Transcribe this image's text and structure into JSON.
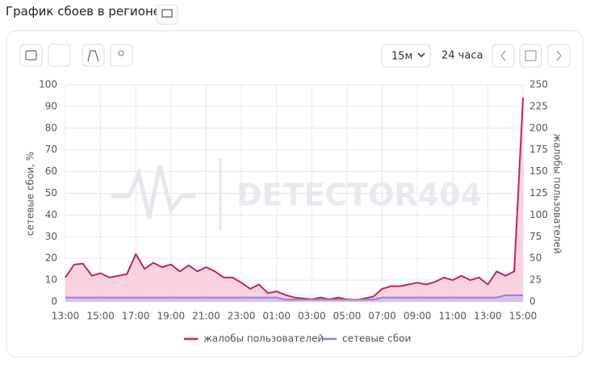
{
  "header": {
    "title": "График сбоев в регионе"
  },
  "toolbar": {
    "interval": "15м",
    "range": "24 часа"
  },
  "watermark": "DETECTOR404",
  "chart_data": {
    "type": "line",
    "y_label": "сетевые сбои, %",
    "y2_label": "жалобы пользователей",
    "categories": [
      "13:00",
      null,
      null,
      null,
      "15:00",
      null,
      null,
      null,
      "17:00",
      null,
      null,
      null,
      "19:00",
      null,
      null,
      null,
      "21:00",
      null,
      null,
      null,
      "23:00",
      null,
      null,
      null,
      "01:00",
      null,
      null,
      null,
      "03:00",
      null,
      null,
      null,
      "05:00",
      null,
      null,
      null,
      "07:00",
      null,
      null,
      null,
      "09:00",
      null,
      null,
      null,
      "11:00",
      null,
      null,
      null,
      "13:00",
      null,
      null,
      null,
      "15:00"
    ],
    "series": [
      {
        "name": "жалобы пользователей",
        "color": "#c8215d",
        "fill": "#f6c6d9",
        "axis": "y2",
        "values": [
          28,
          43,
          44,
          30,
          33,
          28,
          30,
          32,
          55,
          38,
          45,
          40,
          43,
          35,
          42,
          35,
          40,
          35,
          28,
          28,
          22,
          15,
          20,
          10,
          12,
          8,
          5,
          4,
          3,
          5,
          3,
          5,
          3,
          2,
          4,
          6,
          15,
          18,
          18,
          20,
          22,
          20,
          23,
          28,
          25,
          30,
          25,
          28,
          20,
          35,
          30,
          35,
          235
        ]
      },
      {
        "name": "сетевые сбои",
        "color": "#9b7be0",
        "fill": "#c9b8ef",
        "axis": "y",
        "values": [
          2,
          2,
          2,
          2,
          2,
          2,
          2,
          2,
          2,
          2,
          2,
          2,
          2,
          2,
          2,
          2,
          2,
          2,
          2,
          2,
          2,
          2,
          2,
          2,
          2,
          1,
          1,
          1,
          1,
          1,
          1,
          1,
          1,
          1,
          1,
          1,
          2,
          2,
          2,
          2,
          2,
          2,
          2,
          2,
          2,
          2,
          2,
          2,
          2,
          2,
          3,
          3,
          3
        ]
      }
    ],
    "ylim": [
      0,
      100
    ],
    "yticks": [
      0,
      10,
      20,
      30,
      40,
      50,
      60,
      70,
      80,
      90,
      100
    ],
    "y2lim": [
      0,
      250
    ],
    "y2ticks": [
      0,
      25,
      50,
      75,
      100,
      125,
      150,
      175,
      200,
      225,
      250
    ],
    "grid": true
  }
}
